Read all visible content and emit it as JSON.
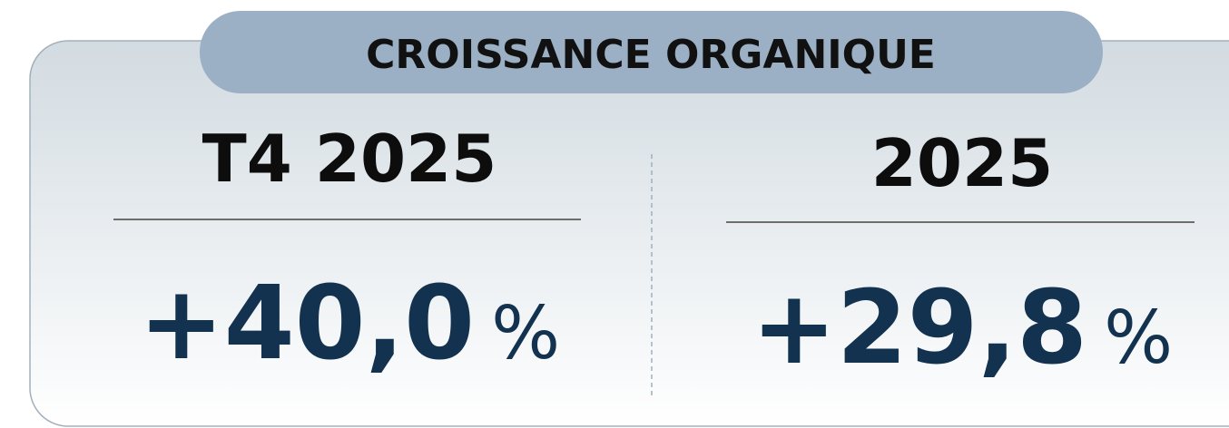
{
  "header": {
    "title": "CROISSANCE ORGANIQUE"
  },
  "panels": [
    {
      "period": "T4 2025",
      "value": "+40,0",
      "unit": "%"
    },
    {
      "period": "2025",
      "value": "+29,8",
      "unit": "%"
    }
  ]
}
